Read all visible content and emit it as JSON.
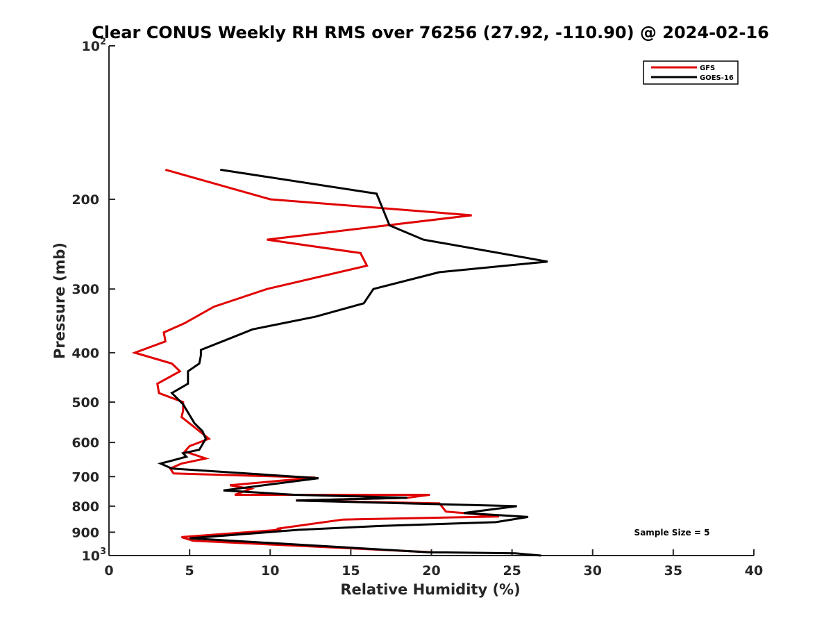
{
  "chart_data": {
    "type": "line",
    "title": "Clear CONUS Weekly RH RMS over 76256 (27.92, -110.90) @ 2024-02-16",
    "xlabel": "Relative Humidity (%)",
    "ylabel": "Pressure (mb)",
    "xlim": [
      0,
      40
    ],
    "ylim": [
      100,
      1000
    ],
    "yscale": "log",
    "y_inverted": true,
    "grid": false,
    "legend_location": "top-right",
    "x_ticks": [
      0,
      5,
      10,
      15,
      20,
      25,
      30,
      35,
      40
    ],
    "x_tick_labels": [
      "0",
      "5",
      "10",
      "15",
      "20",
      "25",
      "30",
      "35",
      "40"
    ],
    "y_ticks": [
      {
        "value": 100,
        "base": "10",
        "exp": "2"
      },
      {
        "value": 200,
        "label": "200"
      },
      {
        "value": 300,
        "label": "300"
      },
      {
        "value": 400,
        "label": "400"
      },
      {
        "value": 500,
        "label": "500"
      },
      {
        "value": 600,
        "label": "600"
      },
      {
        "value": 700,
        "label": "700"
      },
      {
        "value": 800,
        "label": "800"
      },
      {
        "value": 900,
        "label": "900"
      },
      {
        "value": 1000,
        "base": "10",
        "exp": "3"
      }
    ],
    "annotation": "Sample Size = 5",
    "series": [
      {
        "name": "GFS",
        "color": "#e00000",
        "points": [
          [
            3.5,
            175
          ],
          [
            10,
            200
          ],
          [
            22.5,
            215
          ],
          [
            9.8,
            240
          ],
          [
            15.6,
            255
          ],
          [
            16,
            270
          ],
          [
            9.8,
            300
          ],
          [
            6.5,
            325
          ],
          [
            4.7,
            350
          ],
          [
            3.4,
            365
          ],
          [
            3.5,
            380
          ],
          [
            1.6,
            400
          ],
          [
            3.9,
            420
          ],
          [
            4.4,
            435
          ],
          [
            3.0,
            460
          ],
          [
            3.1,
            480
          ],
          [
            4.6,
            500
          ],
          [
            4.6,
            520
          ],
          [
            4.5,
            535
          ],
          [
            5.3,
            560
          ],
          [
            6.2,
            590
          ],
          [
            5.0,
            610
          ],
          [
            4.7,
            625
          ],
          [
            6.0,
            645
          ],
          [
            4.5,
            660
          ],
          [
            3.8,
            675
          ],
          [
            4.0,
            690
          ],
          [
            12.8,
            703
          ],
          [
            7.5,
            728
          ],
          [
            8.8,
            740
          ],
          [
            7.8,
            760
          ],
          [
            19.9,
            760
          ],
          [
            18.5,
            770
          ],
          [
            11.6,
            780
          ],
          [
            20.5,
            790
          ],
          [
            20.9,
            820
          ],
          [
            22.0,
            825
          ],
          [
            24.2,
            838
          ],
          [
            14.5,
            850
          ],
          [
            10.5,
            885
          ],
          [
            10.6,
            890
          ],
          [
            4.5,
            920
          ],
          [
            5.2,
            935
          ],
          [
            20.0,
            985
          ],
          [
            20.0,
            990
          ]
        ]
      },
      {
        "name": "GOES-16",
        "color": "#000000",
        "points": [
          [
            6.9,
            175
          ],
          [
            16.6,
            195
          ],
          [
            17.4,
            225
          ],
          [
            19.5,
            240
          ],
          [
            27.2,
            265
          ],
          [
            20.5,
            278
          ],
          [
            16.4,
            300
          ],
          [
            15.8,
            320
          ],
          [
            12.8,
            340
          ],
          [
            8.9,
            360
          ],
          [
            7.5,
            375
          ],
          [
            5.7,
            395
          ],
          [
            5.7,
            405
          ],
          [
            5.6,
            420
          ],
          [
            4.9,
            435
          ],
          [
            4.9,
            460
          ],
          [
            3.9,
            480
          ],
          [
            4.6,
            505
          ],
          [
            5.3,
            550
          ],
          [
            5.8,
            570
          ],
          [
            6.0,
            590
          ],
          [
            5.6,
            620
          ],
          [
            4.6,
            630
          ],
          [
            4.8,
            640
          ],
          [
            4.0,
            650
          ],
          [
            3.2,
            660
          ],
          [
            3.9,
            675
          ],
          [
            13.0,
            705
          ],
          [
            7.1,
            745
          ],
          [
            11.5,
            760
          ],
          [
            18.5,
            770
          ],
          [
            11.6,
            780
          ],
          [
            25.3,
            800
          ],
          [
            22.0,
            825
          ],
          [
            26.0,
            840
          ],
          [
            24.0,
            860
          ],
          [
            16.8,
            875
          ],
          [
            11.8,
            890
          ],
          [
            5.0,
            925
          ],
          [
            19.8,
            985
          ],
          [
            25.2,
            990
          ],
          [
            26.8,
            1000
          ]
        ]
      }
    ]
  }
}
